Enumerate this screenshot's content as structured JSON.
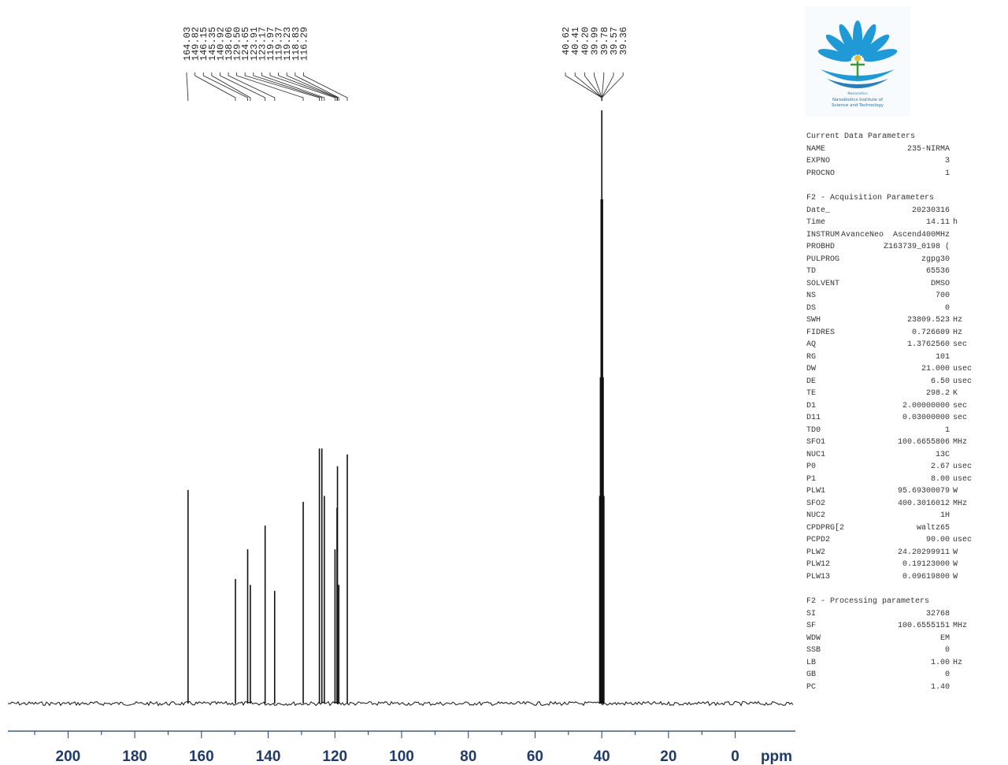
{
  "chart_data": {
    "type": "line",
    "xlabel": "ppm",
    "xlim": [
      220,
      -5
    ],
    "x_ticks": [
      200,
      180,
      160,
      140,
      120,
      100,
      80,
      60,
      40,
      20,
      0
    ],
    "tick_labels": [
      "200",
      "180",
      "160",
      "140",
      "120",
      "100",
      "80",
      "60",
      "40",
      "20",
      "0"
    ],
    "peaks": [
      {
        "ppm": 164.03,
        "intensity": 0.36
      },
      {
        "ppm": 149.82,
        "intensity": 0.21
      },
      {
        "ppm": 146.15,
        "intensity": 0.26
      },
      {
        "ppm": 145.35,
        "intensity": 0.2
      },
      {
        "ppm": 140.92,
        "intensity": 0.3
      },
      {
        "ppm": 138.06,
        "intensity": 0.19
      },
      {
        "ppm": 129.5,
        "intensity": 0.34
      },
      {
        "ppm": 124.65,
        "intensity": 0.43
      },
      {
        "ppm": 123.91,
        "intensity": 0.43
      },
      {
        "ppm": 123.17,
        "intensity": 0.35
      },
      {
        "ppm": 119.97,
        "intensity": 0.26
      },
      {
        "ppm": 119.37,
        "intensity": 0.33
      },
      {
        "ppm": 119.23,
        "intensity": 0.4
      },
      {
        "ppm": 118.83,
        "intensity": 0.2
      },
      {
        "ppm": 116.29,
        "intensity": 0.42
      },
      {
        "ppm": 40.62,
        "intensity": 0.35
      },
      {
        "ppm": 40.41,
        "intensity": 0.55
      },
      {
        "ppm": 40.2,
        "intensity": 0.85
      },
      {
        "ppm": 39.99,
        "intensity": 1.0
      },
      {
        "ppm": 39.78,
        "intensity": 0.85
      },
      {
        "ppm": 39.57,
        "intensity": 0.55
      },
      {
        "ppm": 39.36,
        "intensity": 0.35
      }
    ],
    "peak_labels": [
      "164.03",
      "149.82",
      "146.15",
      "145.35",
      "140.92",
      "138.06",
      "129.50",
      "124.65",
      "123.91",
      "123.17",
      "119.97",
      "119.37",
      "119.23",
      "118.83",
      "116.29",
      "40.62",
      "40.41",
      "40.20",
      "39.99",
      "39.78",
      "39.57",
      "39.36"
    ]
  },
  "colors": {
    "trace": "#111111",
    "axis": "#1f3a6b",
    "text": "#333333",
    "logo_blue": "#1f9ad6"
  },
  "logo": {
    "top_text": "Nanonetics",
    "line1": "Nanobiotics Institute of",
    "line2": "Science and Technology"
  },
  "parameters": {
    "current": {
      "title": "Current Data Parameters",
      "rows": [
        {
          "name": "NAME",
          "value": "235-NIRMA",
          "unit": ""
        },
        {
          "name": "EXPNO",
          "value": "3",
          "unit": ""
        },
        {
          "name": "PROCNO",
          "value": "1",
          "unit": ""
        }
      ]
    },
    "acquisition": {
      "title": "F2 - Acquisition Parameters",
      "rows": [
        {
          "name": "Date_",
          "value": "20230316",
          "unit": ""
        },
        {
          "name": "Time",
          "value": "14.11",
          "unit": "h"
        },
        {
          "name": "INSTRUM",
          "value": "AvanceNeo  Ascend400MHz",
          "unit": ""
        },
        {
          "name": "PROBHD",
          "value": "Z163739_0198 (",
          "unit": ""
        },
        {
          "name": "PULPROG",
          "value": "zgpg30",
          "unit": ""
        },
        {
          "name": "TD",
          "value": "65536",
          "unit": ""
        },
        {
          "name": "SOLVENT",
          "value": "DMSO",
          "unit": ""
        },
        {
          "name": "NS",
          "value": "700",
          "unit": ""
        },
        {
          "name": "DS",
          "value": "0",
          "unit": ""
        },
        {
          "name": "SWH",
          "value": "23809.523",
          "unit": "Hz"
        },
        {
          "name": "FIDRES",
          "value": "0.726609",
          "unit": "Hz"
        },
        {
          "name": "AQ",
          "value": "1.3762560",
          "unit": "sec"
        },
        {
          "name": "RG",
          "value": "101",
          "unit": ""
        },
        {
          "name": "DW",
          "value": "21.000",
          "unit": "usec"
        },
        {
          "name": "DE",
          "value": "6.50",
          "unit": "usec"
        },
        {
          "name": "TE",
          "value": "298.2",
          "unit": "K"
        },
        {
          "name": "D1",
          "value": "2.00000000",
          "unit": "sec"
        },
        {
          "name": "D11",
          "value": "0.03000000",
          "unit": "sec"
        },
        {
          "name": "TD0",
          "value": "1",
          "unit": ""
        },
        {
          "name": "SFO1",
          "value": "100.6655806",
          "unit": "MHz"
        },
        {
          "name": "NUC1",
          "value": "13C",
          "unit": ""
        },
        {
          "name": "P0",
          "value": "2.67",
          "unit": "usec"
        },
        {
          "name": "P1",
          "value": "8.00",
          "unit": "usec"
        },
        {
          "name": "PLW1",
          "value": "95.69300079",
          "unit": "W"
        },
        {
          "name": "SFO2",
          "value": "400.3016012",
          "unit": "MHz"
        },
        {
          "name": "NUC2",
          "value": "1H",
          "unit": ""
        },
        {
          "name": "CPDPRG[2",
          "value": "waltz65",
          "unit": ""
        },
        {
          "name": "PCPD2",
          "value": "90.00",
          "unit": "usec"
        },
        {
          "name": "PLW2",
          "value": "24.20299911",
          "unit": "W"
        },
        {
          "name": "PLW12",
          "value": "0.19123000",
          "unit": "W"
        },
        {
          "name": "PLW13",
          "value": "0.09619800",
          "unit": "W"
        }
      ]
    },
    "processing": {
      "title": "F2 - Processing parameters",
      "rows": [
        {
          "name": "SI",
          "value": "32768",
          "unit": ""
        },
        {
          "name": "SF",
          "value": "100.6555151",
          "unit": "MHz"
        },
        {
          "name": "WDW",
          "value": "EM",
          "unit": ""
        },
        {
          "name": "SSB",
          "value": "0",
          "unit": ""
        },
        {
          "name": "LB",
          "value": "1.00",
          "unit": "Hz"
        },
        {
          "name": "GB",
          "value": "0",
          "unit": ""
        },
        {
          "name": "PC",
          "value": "1.40",
          "unit": ""
        }
      ]
    }
  }
}
